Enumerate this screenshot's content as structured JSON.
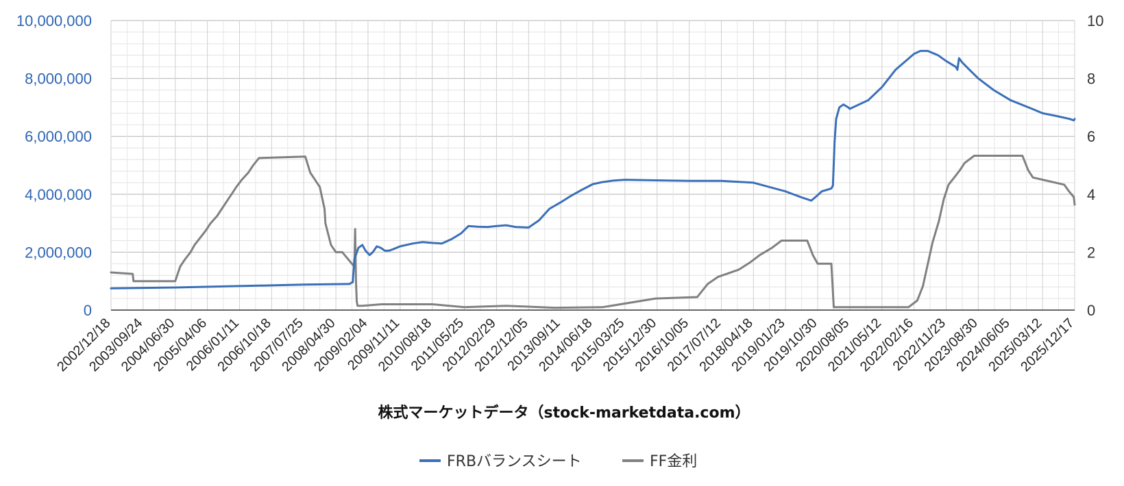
{
  "chart_data": {
    "type": "line",
    "title": "",
    "xlabel": "株式マーケットデータ（stock-marketdata.com）",
    "ylabel": "",
    "ylim": [
      0,
      10000000
    ],
    "y2lim": [
      0,
      10
    ],
    "yticks": [
      "0",
      "2,000,000",
      "4,000,000",
      "6,000,000",
      "8,000,000",
      "10,000,000"
    ],
    "y2ticks": [
      "0",
      "2",
      "4",
      "6",
      "8",
      "10"
    ],
    "x_ticks": [
      "2002/12/18",
      "2003/09/24",
      "2004/06/30",
      "2005/04/06",
      "2006/01/11",
      "2006/10/18",
      "2007/07/25",
      "2008/04/30",
      "2009/02/04",
      "2009/11/11",
      "2010/08/18",
      "2011/05/25",
      "2012/02/29",
      "2012/12/05",
      "2013/09/11",
      "2014/06/18",
      "2015/03/25",
      "2015/12/30",
      "2016/10/05",
      "2017/07/12",
      "2018/04/18",
      "2019/01/23",
      "2019/10/30",
      "2020/08/05",
      "2021/05/12",
      "2022/02/16",
      "2022/11/23",
      "2023/08/30",
      "2024/06/05",
      "2025/03/12",
      "2025/12/17"
    ],
    "grid": true,
    "legend_position": "bottom",
    "colors": {
      "frb": "#3a6fb8",
      "ff": "#808080",
      "left_axis_text": "#2f65b3"
    },
    "series": [
      {
        "name": "FRBバランスシート",
        "axis": "left",
        "x": [
          "2002/12/18",
          "2004/06/30",
          "2006/01/11",
          "2007/07/25",
          "2008/08/27",
          "2008/09/10",
          "2008/09/24",
          "2008/10/08",
          "2008/11/12",
          "2008/12/17",
          "2009/01/14",
          "2009/02/18",
          "2009/03/18",
          "2009/04/22",
          "2009/05/27",
          "2009/07/01",
          "2009/08/05",
          "2009/09/09",
          "2009/11/11",
          "2010/03/03",
          "2010/05/26",
          "2010/08/18",
          "2010/11/10",
          "2011/02/02",
          "2011/04/27",
          "2011/06/29",
          "2011/09/21",
          "2011/12/14",
          "2012/02/29",
          "2012/05/23",
          "2012/08/15",
          "2012/12/05",
          "2013/03/06",
          "2013/06/05",
          "2013/09/11",
          "2013/12/11",
          "2014/03/12",
          "2014/06/18",
          "2014/09/10",
          "2014/12/10",
          "2015/03/25",
          "2015/12/30",
          "2016/10/05",
          "2017/07/12",
          "2018/04/18",
          "2019/01/23",
          "2019/06/05",
          "2019/09/04",
          "2019/09/25",
          "2019/10/30",
          "2019/12/04",
          "2020/01/15",
          "2020/02/26",
          "2020/03/11",
          "2020/03/25",
          "2020/04/08",
          "2020/05/06",
          "2020/06/10",
          "2020/07/22",
          "2020/08/05",
          "2021/01/13",
          "2021/05/12",
          "2021/09/08",
          "2022/02/16",
          "2022/04/13",
          "2022/06/15",
          "2022/09/14",
          "2022/11/23",
          "2023/02/15",
          "2023/03/01",
          "2023/03/15",
          "2023/04/12",
          "2023/06/14",
          "2023/08/30",
          "2024/01/10",
          "2024/06/05",
          "2024/12/11",
          "2025/03/12",
          "2025/07/16",
          "2025/11/05",
          "2025/12/10",
          "2025/12/17"
        ],
        "y": [
          750000,
          780000,
          830000,
          880000,
          900000,
          940000,
          960000,
          1750000,
          2150000,
          2250000,
          2050000,
          1900000,
          2000000,
          2200000,
          2150000,
          2050000,
          2050000,
          2100000,
          2200000,
          2300000,
          2350000,
          2320000,
          2300000,
          2450000,
          2650000,
          2900000,
          2880000,
          2870000,
          2900000,
          2930000,
          2870000,
          2850000,
          3100000,
          3500000,
          3720000,
          3950000,
          4150000,
          4350000,
          4420000,
          4470000,
          4500000,
          4480000,
          4460000,
          4460000,
          4400000,
          4100000,
          3900000,
          3780000,
          3850000,
          3970000,
          4100000,
          4150000,
          4200000,
          4300000,
          5800000,
          6600000,
          7000000,
          7100000,
          7000000,
          6950000,
          7250000,
          7700000,
          8300000,
          8850000,
          8950000,
          8950000,
          8800000,
          8600000,
          8400000,
          8300000,
          8700000,
          8550000,
          8300000,
          8000000,
          7600000,
          7250000,
          6950000,
          6800000,
          6700000,
          6600000,
          6550000,
          6600000
        ]
      },
      {
        "name": "FF金利",
        "axis": "right",
        "x": [
          "2002/12/18",
          "2003/06/25",
          "2003/07/02",
          "2004/06/30",
          "2004/08/11",
          "2004/09/22",
          "2004/11/10",
          "2004/12/15",
          "2005/02/02",
          "2005/03/23",
          "2005/05/04",
          "2005/06/30",
          "2005/08/10",
          "2005/09/21",
          "2005/11/02",
          "2005/12/14",
          "2006/01/31",
          "2006/03/29",
          "2006/05/10",
          "2006/06/29",
          "2007/08/08",
          "2007/09/19",
          "2007/10/31",
          "2007/12/12",
          "2008/01/22",
          "2008/01/30",
          "2008/03/18",
          "2008/04/30",
          "2008/06/25",
          "2008/10/08",
          "2008/10/15",
          "2008/10/22",
          "2008/10/29",
          "2008/11/05",
          "2008/12/17",
          "2009/06/03",
          "2010/08/18",
          "2011/05/25",
          "2012/05/23",
          "2013/07/17",
          "2014/09/10",
          "2015/12/16",
          "2016/12/14",
          "2017/03/15",
          "2017/06/14",
          "2017/12/13",
          "2018/03/21",
          "2018/06/13",
          "2018/09/26",
          "2018/12/19",
          "2019/07/31",
          "2019/09/18",
          "2019/10/30",
          "2020/02/26",
          "2020/03/04",
          "2020/03/18",
          "2021/12/29",
          "2022/03/16",
          "2022/05/04",
          "2022/06/15",
          "2022/07/27",
          "2022/09/21",
          "2022/11/02",
          "2022/12/14",
          "2023/02/01",
          "2023/03/22",
          "2023/05/03",
          "2023/07/26",
          "2024/09/18",
          "2024/11/07",
          "2024/12/18",
          "2025/09/17",
          "2025/10/29",
          "2025/12/10",
          "2025/12/17"
        ],
        "y": [
          1.3,
          1.25,
          1.0,
          1.0,
          1.5,
          1.75,
          2.0,
          2.25,
          2.5,
          2.75,
          3.0,
          3.25,
          3.5,
          3.75,
          4.0,
          4.25,
          4.5,
          4.75,
          5.0,
          5.25,
          5.3,
          4.75,
          4.5,
          4.25,
          3.5,
          3.0,
          2.25,
          2.0,
          2.0,
          1.5,
          2.8,
          1.0,
          0.3,
          0.15,
          0.15,
          0.2,
          0.2,
          0.1,
          0.15,
          0.08,
          0.1,
          0.4,
          0.45,
          0.9,
          1.15,
          1.4,
          1.65,
          1.9,
          2.15,
          2.4,
          2.4,
          1.9,
          1.6,
          1.6,
          1.1,
          0.1,
          0.1,
          0.33,
          0.83,
          1.58,
          2.33,
          3.08,
          3.83,
          4.33,
          4.58,
          4.83,
          5.08,
          5.33,
          5.33,
          4.83,
          4.58,
          4.33,
          4.1,
          3.9,
          3.64
        ]
      }
    ]
  }
}
